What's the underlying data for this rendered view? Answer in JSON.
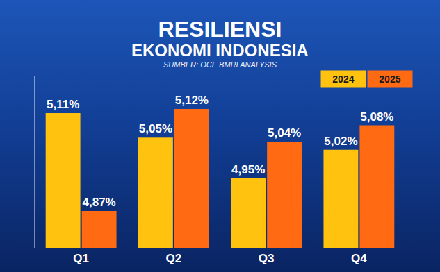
{
  "chart_data": {
    "type": "bar",
    "title": "RESILIENSI",
    "subtitle": "EKONOMI INDONESIA",
    "annotations": [
      "SUMBER: OCE BMRI ANALYSIS"
    ],
    "categories": [
      "Q1",
      "Q2",
      "Q3",
      "Q4"
    ],
    "series": [
      {
        "name": "2024",
        "color": "#FFC20E",
        "values": [
          5.11,
          5.05,
          4.95,
          5.02
        ],
        "value_labels": [
          "5,11%",
          "5,05%",
          "4,95%",
          "5,02%"
        ]
      },
      {
        "name": "2025",
        "color": "#FF6A13",
        "values": [
          4.87,
          5.12,
          5.04,
          5.08
        ],
        "value_labels": [
          "4,87%",
          "5,12%",
          "5,04%",
          "5,08%"
        ]
      }
    ],
    "ylim": [
      4.78,
      5.2
    ],
    "data_labels": true,
    "tick_labels": "x",
    "grid": false,
    "legend": "upper right"
  }
}
